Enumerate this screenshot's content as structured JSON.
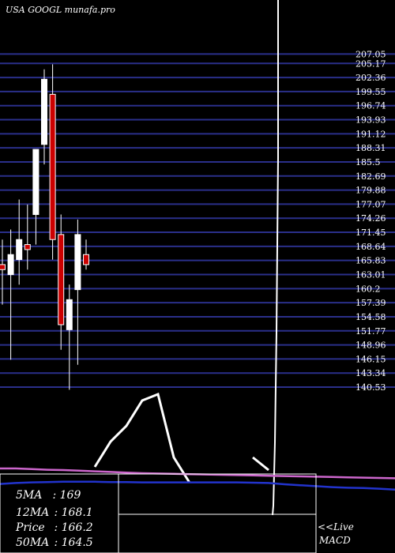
{
  "header": {
    "title": "USA GOOGL munafa.pro"
  },
  "chart_data": [
    {
      "type": "candlestick",
      "ylim": [
        137.7,
        209.0
      ],
      "y_ticks": [
        "207.05",
        "205.17",
        "202.36",
        "199.55",
        "196.74",
        "193.93",
        "191.12",
        "188.31",
        "185.5",
        "182.69",
        "179.88",
        "177.07",
        "174.26",
        "171.45",
        "168.64",
        "165.83",
        "163.01",
        "160.2",
        "157.39",
        "154.58",
        "151.77",
        "148.96",
        "146.15",
        "143.34",
        "140.53"
      ],
      "candles": [
        {
          "open": 165.0,
          "high": 170.0,
          "low": 157.0,
          "close": 164.0,
          "color": "red"
        },
        {
          "open": 163.0,
          "high": 172.0,
          "low": 146.0,
          "close": 167.0,
          "color": "white"
        },
        {
          "open": 166.0,
          "high": 178.0,
          "low": 161.0,
          "close": 170.0,
          "color": "white"
        },
        {
          "open": 168.0,
          "high": 177.0,
          "low": 164.0,
          "close": 169.0,
          "color": "red"
        },
        {
          "open": 175.0,
          "high": 188.0,
          "low": 169.0,
          "close": 188.0,
          "color": "white"
        },
        {
          "open": 189.0,
          "high": 204.0,
          "low": 185.0,
          "close": 202.0,
          "color": "white"
        },
        {
          "open": 199.0,
          "high": 205.0,
          "low": 166.0,
          "close": 170.0,
          "color": "red"
        },
        {
          "open": 171.0,
          "high": 175.0,
          "low": 148.0,
          "close": 153.0,
          "color": "red"
        },
        {
          "open": 152.0,
          "high": 161.0,
          "low": 140.0,
          "close": 158.0,
          "color": "white"
        },
        {
          "open": 160.0,
          "high": 174.0,
          "low": 145.0,
          "close": 171.0,
          "color": "white"
        },
        {
          "open": 167.0,
          "high": 170.0,
          "low": 164.0,
          "close": 165.0,
          "color": "red"
        }
      ]
    },
    {
      "type": "line",
      "title": "MACD",
      "series": [
        {
          "name": "MACD",
          "color": "#ffffff",
          "values": [
            null,
            null,
            null,
            null,
            null,
            null,
            6,
            14,
            19,
            27,
            29,
            9,
            1,
            null,
            null,
            null,
            9,
            5,
            null,
            null,
            null,
            null,
            null,
            null,
            null,
            null
          ]
        },
        {
          "name": "Signal",
          "color": "#cc66cc",
          "values": [
            5.5,
            5.5,
            5.3,
            5.1,
            5.0,
            4.8,
            4.6,
            4.4,
            4.2,
            4.0,
            3.9,
            3.8,
            3.7,
            3.6,
            3.5,
            3.4,
            3.3,
            3.2,
            3.1,
            3.0,
            2.9,
            2.8,
            2.7,
            2.6,
            2.5,
            2.4
          ]
        },
        {
          "name": "Zero",
          "color": "#2233cc",
          "values": [
            0.6,
            0.9,
            1.1,
            1.2,
            1.3,
            1.3,
            1.3,
            1.2,
            1.2,
            1.1,
            1.1,
            1.1,
            1.1,
            1.1,
            1.1,
            1.1,
            1.0,
            0.9,
            0.5,
            0.2,
            -0.1,
            -0.4,
            -0.6,
            -0.7,
            -0.9,
            -1.2
          ]
        }
      ]
    }
  ],
  "stats": [
    {
      "label": "5MA",
      "value": "169"
    },
    {
      "label": "12MA",
      "value": "168.1"
    },
    {
      "label": "Price",
      "value": "166.2"
    },
    {
      "label": "50MA",
      "value": "164.5"
    }
  ],
  "live_tag": "<<Live",
  "macd_tag": "MACD",
  "colors": {
    "background": "#000000",
    "grid": "#2a2f8a",
    "up": "#ffffff",
    "down": "#cc0000",
    "signal": "#cc66cc",
    "zero": "#2233cc"
  }
}
